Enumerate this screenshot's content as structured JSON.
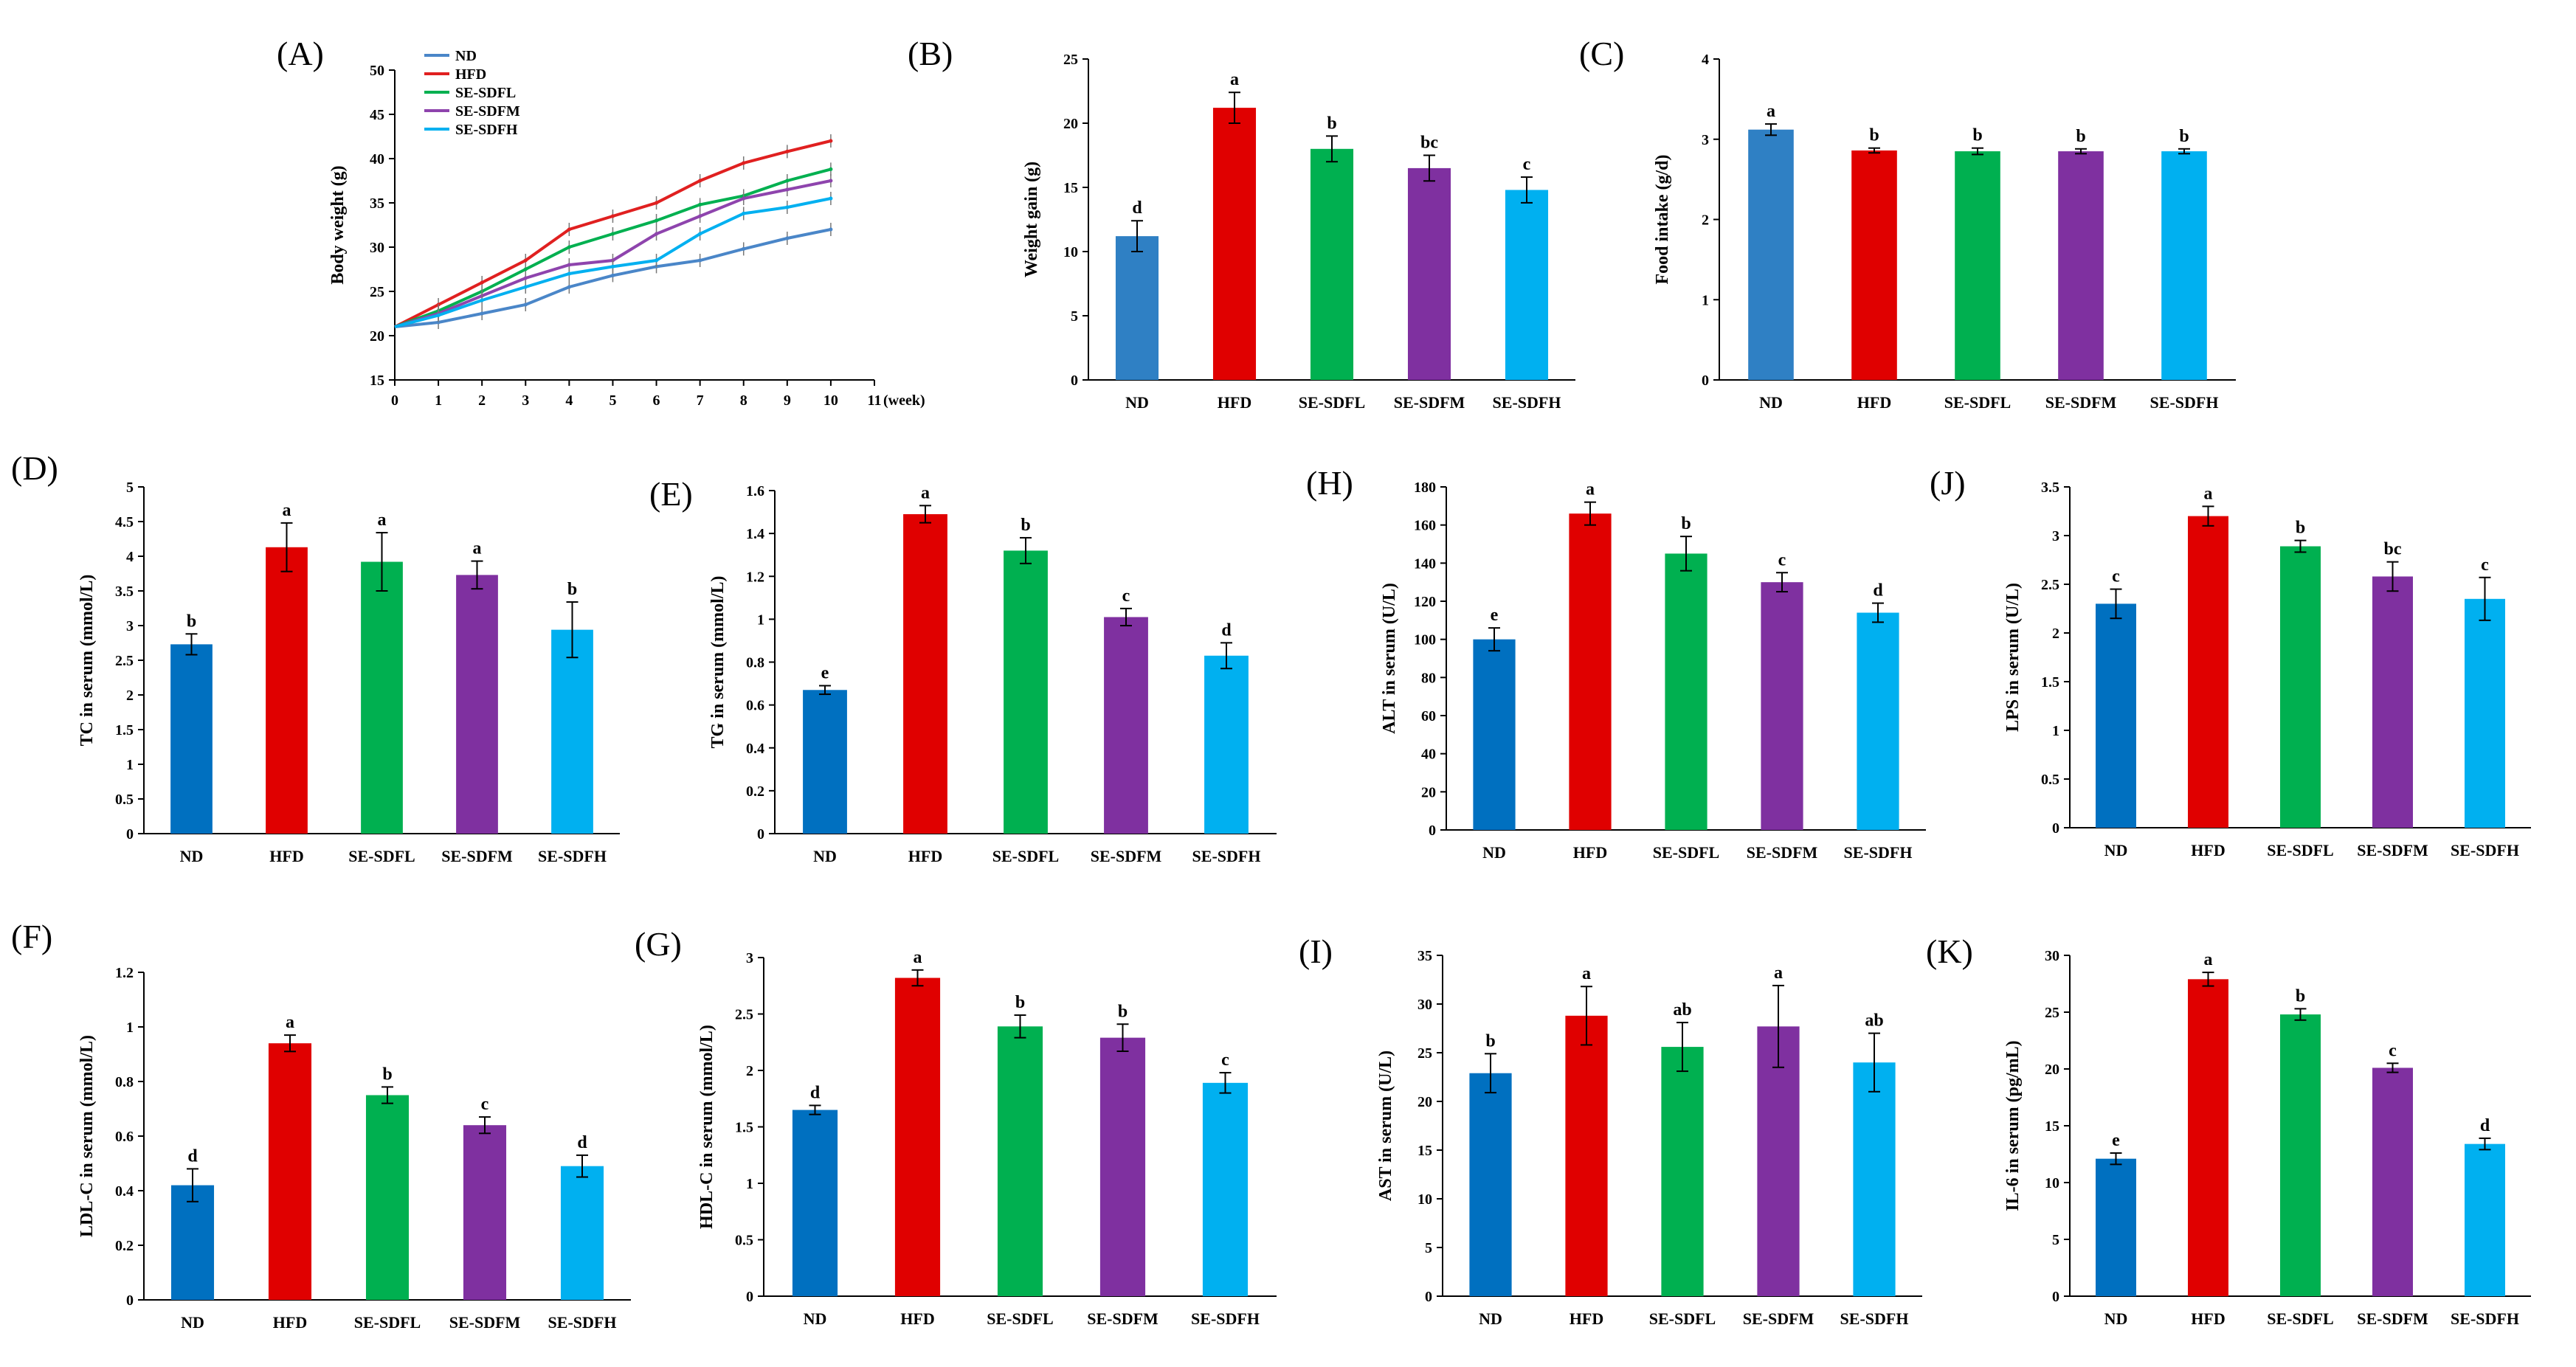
{
  "chart_data": [
    {
      "id": "A",
      "type": "line",
      "panel_label": "(A)",
      "ylabel": "Body weight (g)",
      "xlabel": "(week)",
      "x": [
        0,
        1,
        2,
        3,
        4,
        5,
        6,
        7,
        8,
        9,
        10
      ],
      "x_ticks": [
        0,
        1,
        2,
        3,
        4,
        5,
        6,
        7,
        8,
        9,
        10,
        11
      ],
      "ylim": [
        15,
        50
      ],
      "yticks": [
        15,
        20,
        25,
        30,
        35,
        40,
        45,
        50
      ],
      "legend_position": "top-left",
      "series": [
        {
          "name": "ND",
          "color": "#4a86c8",
          "values": [
            21,
            21.5,
            22.5,
            23.5,
            25.5,
            26.8,
            27.8,
            28.5,
            29.8,
            31,
            32
          ]
        },
        {
          "name": "HFD",
          "color": "#e02020",
          "values": [
            21,
            23.5,
            26,
            28.5,
            32,
            33.5,
            35,
            37.5,
            39.5,
            40.8,
            42
          ]
        },
        {
          "name": "SE-SDFL",
          "color": "#00b050",
          "values": [
            21,
            22.8,
            25,
            27.5,
            30,
            31.5,
            33,
            34.8,
            35.8,
            37.5,
            38.8
          ]
        },
        {
          "name": "SE-SDFM",
          "color": "#8e44ad",
          "values": [
            21,
            22.5,
            24.5,
            26.5,
            28,
            28.5,
            31.5,
            33.5,
            35.5,
            36.5,
            37.5
          ]
        },
        {
          "name": "SE-SDFH",
          "color": "#00b0f0",
          "values": [
            21,
            22.3,
            24,
            25.5,
            27,
            27.8,
            28.5,
            31.5,
            33.8,
            34.5,
            35.5
          ]
        }
      ]
    },
    {
      "id": "B",
      "type": "bar",
      "panel_label": "(B)",
      "ylabel": "Weight gain (g)",
      "ylim": [
        0,
        25
      ],
      "yticks": [
        0,
        5,
        10,
        15,
        20,
        25
      ],
      "categories": [
        "ND",
        "HFD",
        "SE-SDFL",
        "SE-SDFM",
        "SE-SDFH"
      ],
      "colors": [
        "#2f80c4",
        "#e00000",
        "#00b050",
        "#7f30a0",
        "#00b0f0"
      ],
      "values": [
        11.2,
        21.2,
        18,
        16.5,
        14.8
      ],
      "errors": [
        1.2,
        1.2,
        1.0,
        1.0,
        1.0
      ],
      "sig": [
        "d",
        "a",
        "b",
        "bc",
        "c"
      ]
    },
    {
      "id": "C",
      "type": "bar",
      "panel_label": "(C)",
      "ylabel": "Food intake (g/d)",
      "ylim": [
        0,
        4
      ],
      "yticks": [
        0,
        1,
        2,
        3,
        4
      ],
      "categories": [
        "ND",
        "HFD",
        "SE-SDFL",
        "SE-SDFM",
        "SE-SDFH"
      ],
      "colors": [
        "#2f80c4",
        "#e00000",
        "#00b050",
        "#7f30a0",
        "#00b0f0"
      ],
      "values": [
        3.12,
        2.86,
        2.85,
        2.85,
        2.85
      ],
      "errors": [
        0.07,
        0.03,
        0.04,
        0.03,
        0.03
      ],
      "sig": [
        "a",
        "b",
        "b",
        "b",
        "b"
      ]
    },
    {
      "id": "D",
      "type": "bar",
      "panel_label": "(D)",
      "ylabel": "TC in serum (mmol/L)",
      "ylim": [
        0,
        5
      ],
      "yticks": [
        0,
        0.5,
        1,
        1.5,
        2,
        2.5,
        3,
        3.5,
        4,
        4.5,
        5
      ],
      "categories": [
        "ND",
        "HFD",
        "SE-SDFL",
        "SE-SDFM",
        "SE-SDFH"
      ],
      "colors": [
        "#0070c0",
        "#e00000",
        "#00b050",
        "#7f30a0",
        "#00b0f0"
      ],
      "values": [
        2.73,
        4.13,
        3.92,
        3.73,
        2.94
      ],
      "errors": [
        0.15,
        0.35,
        0.42,
        0.2,
        0.4
      ],
      "sig": [
        "b",
        "a",
        "a",
        "a",
        "b"
      ]
    },
    {
      "id": "E",
      "type": "bar",
      "panel_label": "(E)",
      "ylabel": "TG in serum (mmol/L)",
      "ylim": [
        0,
        1.6
      ],
      "yticks": [
        0,
        0.2,
        0.4,
        0.6,
        0.8,
        1,
        1.2,
        1.4,
        1.6
      ],
      "categories": [
        "ND",
        "HFD",
        "SE-SDFL",
        "SE-SDFM",
        "SE-SDFH"
      ],
      "colors": [
        "#0070c0",
        "#e00000",
        "#00b050",
        "#7f30a0",
        "#00b0f0"
      ],
      "values": [
        0.67,
        1.49,
        1.32,
        1.01,
        0.83
      ],
      "errors": [
        0.02,
        0.04,
        0.06,
        0.04,
        0.06
      ],
      "sig": [
        "e",
        "a",
        "b",
        "c",
        "d"
      ]
    },
    {
      "id": "H",
      "type": "bar",
      "panel_label": "(H)",
      "ylabel": "ALT in serum (U/L)",
      "ylim": [
        0,
        180
      ],
      "yticks": [
        0,
        20,
        40,
        60,
        80,
        100,
        120,
        140,
        160,
        180
      ],
      "categories": [
        "ND",
        "HFD",
        "SE-SDFL",
        "SE-SDFM",
        "SE-SDFH"
      ],
      "colors": [
        "#0070c0",
        "#e00000",
        "#00b050",
        "#7f30a0",
        "#00b0f0"
      ],
      "values": [
        100,
        166,
        145,
        130,
        114
      ],
      "errors": [
        6,
        6,
        9,
        5,
        5
      ],
      "sig": [
        "e",
        "a",
        "b",
        "c",
        "d"
      ]
    },
    {
      "id": "J",
      "type": "bar",
      "panel_label": "(J)",
      "ylabel": "LPS in serum (U/L)",
      "ylim": [
        0,
        3.5
      ],
      "yticks": [
        0,
        0.5,
        1,
        1.5,
        2,
        2.5,
        3,
        3.5
      ],
      "categories": [
        "ND",
        "HFD",
        "SE-SDFL",
        "SE-SDFM",
        "SE-SDFH"
      ],
      "colors": [
        "#0070c0",
        "#e00000",
        "#00b050",
        "#7f30a0",
        "#00b0f0"
      ],
      "values": [
        2.3,
        3.2,
        2.89,
        2.58,
        2.35
      ],
      "errors": [
        0.15,
        0.1,
        0.06,
        0.15,
        0.22
      ],
      "sig": [
        "c",
        "a",
        "b",
        "bc",
        "c"
      ]
    },
    {
      "id": "F",
      "type": "bar",
      "panel_label": "(F)",
      "ylabel": "LDL-C in serum (mmol/L)",
      "ylim": [
        0,
        1.2
      ],
      "yticks": [
        0,
        0.2,
        0.4,
        0.6,
        0.8,
        1,
        1.2
      ],
      "categories": [
        "ND",
        "HFD",
        "SE-SDFL",
        "SE-SDFM",
        "SE-SDFH"
      ],
      "colors": [
        "#0070c0",
        "#e00000",
        "#00b050",
        "#7f30a0",
        "#00b0f0"
      ],
      "values": [
        0.42,
        0.94,
        0.75,
        0.64,
        0.49
      ],
      "errors": [
        0.06,
        0.03,
        0.03,
        0.03,
        0.04
      ],
      "sig": [
        "d",
        "a",
        "b",
        "c",
        "d"
      ]
    },
    {
      "id": "G",
      "type": "bar",
      "panel_label": "(G)",
      "ylabel": "HDL-C in serum (mmol/L)",
      "ylim": [
        0,
        3
      ],
      "yticks": [
        0,
        0.5,
        1,
        1.5,
        2,
        2.5,
        3
      ],
      "categories": [
        "ND",
        "HFD",
        "SE-SDFL",
        "SE-SDFM",
        "SE-SDFH"
      ],
      "colors": [
        "#0070c0",
        "#e00000",
        "#00b050",
        "#7f30a0",
        "#00b0f0"
      ],
      "values": [
        1.65,
        2.82,
        2.39,
        2.29,
        1.89
      ],
      "errors": [
        0.04,
        0.07,
        0.1,
        0.12,
        0.09
      ],
      "sig": [
        "d",
        "a",
        "b",
        "b",
        "c"
      ]
    },
    {
      "id": "I",
      "type": "bar",
      "panel_label": "(I)",
      "ylabel": "AST in serum (U/L)",
      "ylim": [
        0,
        35
      ],
      "yticks": [
        0,
        5,
        10,
        15,
        20,
        25,
        30,
        35
      ],
      "categories": [
        "ND",
        "HFD",
        "SE-SDFL",
        "SE-SDFM",
        "SE-SDFH"
      ],
      "colors": [
        "#0070c0",
        "#e00000",
        "#00b050",
        "#7f30a0",
        "#00b0f0"
      ],
      "values": [
        22.9,
        28.8,
        25.6,
        27.7,
        24
      ],
      "errors": [
        2,
        3,
        2.5,
        4.2,
        3
      ],
      "sig": [
        "b",
        "a",
        "ab",
        "a",
        "ab"
      ]
    },
    {
      "id": "K",
      "type": "bar",
      "panel_label": "(K)",
      "ylabel": "IL-6 in serum (pg/mL)",
      "ylim": [
        0,
        30
      ],
      "yticks": [
        0,
        5,
        10,
        15,
        20,
        25,
        30
      ],
      "categories": [
        "ND",
        "HFD",
        "SE-SDFL",
        "SE-SDFM",
        "SE-SDFH"
      ],
      "colors": [
        "#0070c0",
        "#e00000",
        "#00b050",
        "#7f30a0",
        "#00b0f0"
      ],
      "values": [
        12.1,
        27.9,
        24.8,
        20.1,
        13.4
      ],
      "errors": [
        0.5,
        0.6,
        0.5,
        0.4,
        0.5
      ],
      "sig": [
        "e",
        "a",
        "b",
        "c",
        "d"
      ]
    }
  ]
}
